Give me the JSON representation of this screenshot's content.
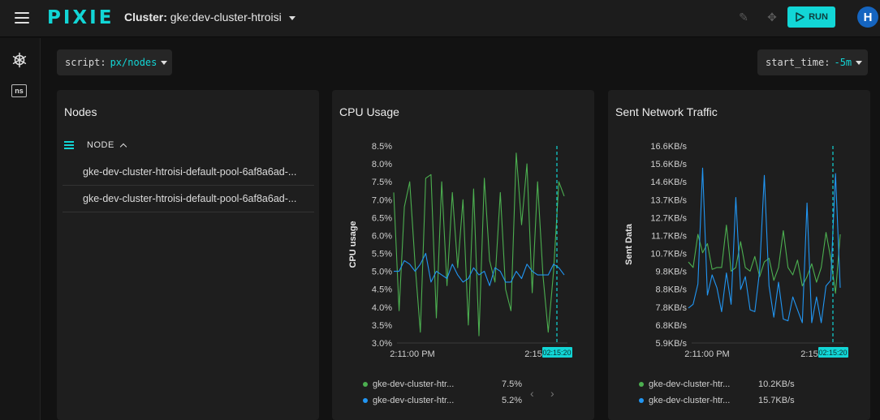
{
  "topbar": {
    "logo": "PIXIE",
    "cluster_label": "Cluster:",
    "cluster_name": "gke:dev-cluster-htroisi",
    "run_label": "RUN",
    "avatar_initial": "H"
  },
  "sidebar": {
    "ns_label": "ns"
  },
  "script_pill": {
    "key": "script:",
    "value": "px/nodes"
  },
  "start_pill": {
    "key": "start_time:",
    "value": "-5m"
  },
  "nodes_panel": {
    "title": "Nodes",
    "column": "NODE",
    "rows": [
      "gke-dev-cluster-htroisi-default-pool-6af8a6ad-...",
      "gke-dev-cluster-htroisi-default-pool-6af8a6ad-..."
    ]
  },
  "colors": {
    "accent": "#12d6d6",
    "green": "#4caf50",
    "blue": "#2196f3"
  },
  "chart_data": [
    {
      "type": "line",
      "title": "CPU Usage",
      "ylabel": "CPU usage",
      "ylim": [
        3.0,
        8.5
      ],
      "y_ticks": [
        "8.5%",
        "8.0%",
        "7.5%",
        "7.0%",
        "6.5%",
        "6.0%",
        "5.5%",
        "5.0%",
        "4.5%",
        "4.0%",
        "3.5%",
        "3.0%"
      ],
      "x_ticks": [
        "2:11:00 PM",
        "2:15"
      ],
      "cursor_label": "02:15:20",
      "series": [
        {
          "name": "gke-dev-cluster-htr...",
          "legend_value": "7.5%",
          "values": [
            7.2,
            3.9,
            6.8,
            7.5,
            5.2,
            3.3,
            7.6,
            7.7,
            3.7,
            7.5,
            4.6,
            7.2,
            5.1,
            7.0,
            3.5,
            7.3,
            3.2,
            7.6,
            5.3,
            4.7,
            7.2,
            4.5,
            3.9,
            8.3,
            6.3,
            8.0,
            4.4,
            7.5,
            4.9,
            3.3,
            5.0,
            7.5,
            7.1
          ]
        },
        {
          "name": "gke-dev-cluster-htr...",
          "legend_value": "5.2%",
          "values": [
            5.0,
            5.0,
            5.3,
            5.2,
            5.0,
            5.2,
            5.5,
            4.7,
            5.0,
            4.9,
            4.8,
            5.2,
            4.9,
            4.7,
            4.8,
            5.1,
            4.9,
            5.0,
            4.6,
            5.1,
            5.0,
            4.7,
            4.7,
            5.0,
            4.8,
            5.2,
            5.0,
            4.9,
            4.9,
            4.9,
            5.2,
            5.1,
            4.9
          ]
        }
      ]
    },
    {
      "type": "line",
      "title": "Sent Network Traffic",
      "ylabel": "Sent Data",
      "ylim": [
        5.9,
        16.6
      ],
      "y_ticks": [
        "16.6KB/s",
        "15.6KB/s",
        "14.6KB/s",
        "13.7KB/s",
        "12.7KB/s",
        "11.7KB/s",
        "10.7KB/s",
        "9.8KB/s",
        "8.8KB/s",
        "7.8KB/s",
        "6.8KB/s",
        "5.9KB/s"
      ],
      "x_ticks": [
        "2:11:00 PM",
        "2:15"
      ],
      "cursor_label": "02:15:20",
      "series": [
        {
          "name": "gke-dev-cluster-htr...",
          "legend_value": "10.2KB/s",
          "values": [
            10.3,
            10.0,
            11.8,
            10.8,
            11.3,
            9.9,
            10.0,
            10.0,
            12.3,
            9.8,
            10.0,
            11.4,
            10.0,
            9.8,
            10.6,
            9.5,
            10.3,
            10.5,
            9.3,
            10.0,
            12.0,
            10.0,
            9.6,
            10.4,
            9.0,
            9.5,
            10.2,
            9.2,
            10.0,
            11.9,
            10.5,
            8.6,
            11.8
          ]
        },
        {
          "name": "gke-dev-cluster-htr...",
          "legend_value": "15.7KB/s",
          "values": [
            7.8,
            8.0,
            9.1,
            15.4,
            8.5,
            9.6,
            8.9,
            7.6,
            9.7,
            8.0,
            13.8,
            8.8,
            9.5,
            7.7,
            7.6,
            9.8,
            15.0,
            9.0,
            7.3,
            9.2,
            7.2,
            7.1,
            8.4,
            7.7,
            7.0,
            13.5,
            7.0,
            8.4,
            7.0,
            9.0,
            9.3,
            15.1,
            8.9
          ]
        }
      ]
    }
  ]
}
